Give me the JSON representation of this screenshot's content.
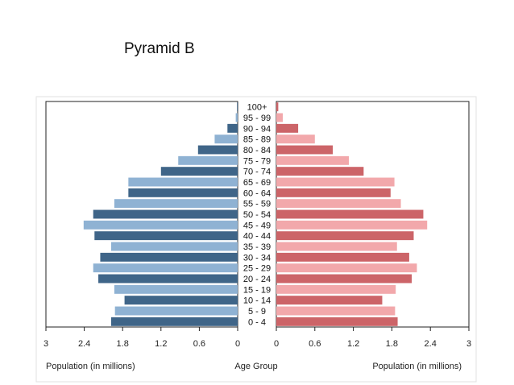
{
  "page_title": "Pyramid B",
  "chart_data": {
    "type": "bar",
    "orientation": "horizontal-population-pyramid",
    "categories": [
      "0 - 4",
      "5 - 9",
      "10 - 14",
      "15 - 19",
      "20 - 24",
      "25 - 29",
      "30 - 34",
      "35 - 39",
      "40 - 44",
      "45 - 49",
      "50 - 54",
      "55 - 59",
      "60 - 64",
      "65 - 69",
      "70 - 74",
      "75 - 79",
      "80 - 84",
      "85 - 89",
      "90 - 94",
      "95 - 99",
      "100+"
    ],
    "series": [
      {
        "side": "left",
        "values": [
          1.98,
          1.92,
          1.77,
          1.93,
          2.18,
          2.26,
          2.15,
          1.98,
          2.24,
          2.41,
          2.26,
          1.93,
          1.71,
          1.71,
          1.2,
          0.93,
          0.62,
          0.36,
          0.16,
          0.03,
          0.01
        ],
        "shades": [
          "#3f6588",
          "#8fb2d3"
        ]
      },
      {
        "side": "right",
        "values": [
          1.89,
          1.85,
          1.65,
          1.86,
          2.11,
          2.19,
          2.07,
          1.88,
          2.14,
          2.35,
          2.29,
          1.94,
          1.78,
          1.84,
          1.36,
          1.13,
          0.88,
          0.6,
          0.34,
          0.1,
          0.03
        ],
        "shades": [
          "#cc6468",
          "#f2a8ab"
        ]
      }
    ],
    "xlim": [
      0,
      3
    ],
    "left_ticks": [
      "3",
      "2.4",
      "1.8",
      "1.2",
      "0.6",
      "0"
    ],
    "right_ticks": [
      "0",
      "0.6",
      "1.2",
      "1.8",
      "2.4",
      "3"
    ],
    "left_xlabel": "Population (in millions)",
    "center_label": "Age Group",
    "right_xlabel": "Population (in millions)"
  }
}
